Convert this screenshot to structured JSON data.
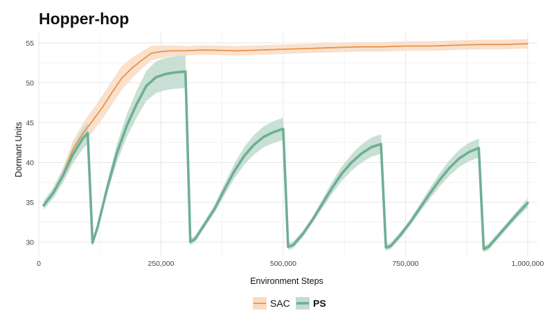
{
  "chart_data": {
    "type": "line",
    "title": "Hopper-hop",
    "xlabel": "Environment Steps",
    "ylabel": "Dormant Units",
    "xlim": [
      0,
      1020000
    ],
    "ylim": [
      28.3,
      56.3
    ],
    "x_ticks": [
      0,
      250000,
      500000,
      750000,
      1000000
    ],
    "x_tick_labels": [
      "0",
      "250,000",
      "500,000",
      "750,000",
      "1,000,000"
    ],
    "y_ticks": [
      30,
      35,
      40,
      45,
      50,
      55
    ],
    "y_tick_labels": [
      "30",
      "35",
      "40",
      "45",
      "50",
      "55"
    ],
    "grid": true,
    "legend_position": "bottom",
    "series": [
      {
        "name": "SAC",
        "color": "#e8924a",
        "band_color": "#f9dcc4",
        "bold_label": false,
        "x": [
          10000,
          30000,
          50000,
          70000,
          90000,
          110000,
          130000,
          150000,
          170000,
          190000,
          210000,
          230000,
          250000,
          270000,
          300000,
          330000,
          350000,
          400000,
          450000,
          500000,
          550000,
          600000,
          650000,
          700000,
          750000,
          800000,
          850000,
          900000,
          950000,
          1000000
        ],
        "y": [
          34.6,
          36.2,
          38.6,
          41.6,
          43.6,
          45.2,
          46.9,
          48.8,
          50.6,
          51.8,
          52.8,
          53.7,
          53.9,
          54.0,
          54.0,
          54.1,
          54.1,
          54.0,
          54.1,
          54.2,
          54.3,
          54.4,
          54.5,
          54.5,
          54.6,
          54.6,
          54.7,
          54.8,
          54.8,
          54.9
        ],
        "band": [
          0.2,
          0.4,
          0.8,
          1.1,
          1.3,
          1.4,
          1.5,
          1.5,
          1.5,
          1.3,
          1.1,
          0.9,
          0.8,
          0.7,
          0.6,
          0.6,
          0.6,
          0.6,
          0.6,
          0.6,
          0.6,
          0.6,
          0.6,
          0.6,
          0.6,
          0.6,
          0.6,
          0.6,
          0.6,
          0.6
        ]
      },
      {
        "name": "PS",
        "color": "#6fae93",
        "band_color": "#c2ddd0",
        "bold_label": true,
        "x": [
          10000,
          30000,
          50000,
          70000,
          90000,
          100000,
          110000,
          120000,
          140000,
          160000,
          180000,
          200000,
          220000,
          240000,
          260000,
          280000,
          300000,
          310000,
          320000,
          340000,
          360000,
          380000,
          400000,
          420000,
          440000,
          460000,
          480000,
          500000,
          510000,
          520000,
          540000,
          560000,
          580000,
          600000,
          620000,
          640000,
          660000,
          680000,
          700000,
          710000,
          720000,
          740000,
          760000,
          780000,
          800000,
          820000,
          840000,
          860000,
          880000,
          900000,
          910000,
          920000,
          940000,
          960000,
          980000,
          1000000
        ],
        "y": [
          34.6,
          36.2,
          38.4,
          41.0,
          43.0,
          43.7,
          29.9,
          31.8,
          36.8,
          41.2,
          44.6,
          47.3,
          49.6,
          50.7,
          51.1,
          51.3,
          51.4,
          30.0,
          30.4,
          32.3,
          34.2,
          36.6,
          38.9,
          40.8,
          42.2,
          43.2,
          43.8,
          44.2,
          29.4,
          29.6,
          31.0,
          32.8,
          34.8,
          36.8,
          38.6,
          40.0,
          41.1,
          41.9,
          42.3,
          29.3,
          29.5,
          30.9,
          32.5,
          34.3,
          36.1,
          37.8,
          39.3,
          40.5,
          41.3,
          41.8,
          29.1,
          29.4,
          30.8,
          32.2,
          33.6,
          34.9
        ]
      }
    ]
  }
}
